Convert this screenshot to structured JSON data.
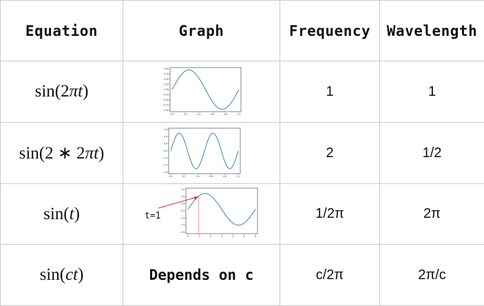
{
  "headers": {
    "equation": "Equation",
    "graph": "Graph",
    "frequency": "Frequency",
    "wavelength": "Wavelength"
  },
  "rows": [
    {
      "eq_prefix": "sin(2",
      "eq_var": "πt",
      "eq_suffix": ")",
      "frequency": "1",
      "wavelength": "1"
    },
    {
      "eq_prefix": "sin(2 ∗ 2",
      "eq_var": "πt",
      "eq_suffix": ")",
      "frequency": "2",
      "wavelength": "1/2"
    },
    {
      "eq_prefix": "sin(",
      "eq_var": "t",
      "eq_suffix": ")",
      "frequency": "1/2π",
      "wavelength": "2π"
    },
    {
      "eq_prefix": "sin(",
      "eq_var": "ct",
      "eq_suffix": ")",
      "frequency": "c/2π",
      "wavelength": "2π/c",
      "graph_note": "Depends on c"
    }
  ],
  "graph_annotation": "t=1",
  "colors": {
    "curve": "#1f77b4",
    "marker": "#d62728",
    "border": "#c8c8c8"
  },
  "plots": [
    {
      "xticks": [
        "0.0",
        "0.2",
        "0.4",
        "0.6",
        "0.8",
        "1.0"
      ],
      "yticks": [
        "1.00",
        "0.75",
        "0.50",
        "0.25",
        "0.00",
        "-0.25",
        "-0.50",
        "-0.75",
        "-1.00"
      ]
    },
    {
      "xticks": [
        "0.0",
        "0.2",
        "0.4",
        "0.6",
        "0.8",
        "1.0"
      ],
      "yticks": [
        "1.0",
        "0.5",
        "0.0",
        "-0.5",
        "-1.0",
        "-1.5",
        "-2.0"
      ]
    },
    {
      "xticks": [
        "0",
        "1",
        "2",
        "3",
        "4",
        "5",
        "6"
      ],
      "yticks": [
        "1.0",
        "0.5",
        "0.0",
        "-0.5",
        "-1.0",
        "-1.5",
        "-2.0"
      ]
    }
  ]
}
